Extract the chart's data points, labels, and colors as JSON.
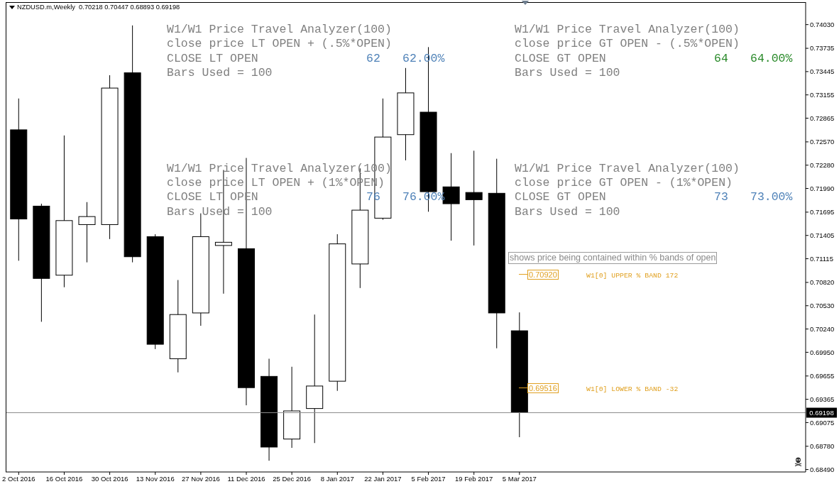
{
  "chart_data": {
    "type": "candlestick",
    "title": "NZDUSD.m,Weekly  0.70218 0.70447 0.68893 0.69198",
    "x": [
      "2016-10-02",
      "2016-10-09",
      "2016-10-16",
      "2016-10-23",
      "2016-10-30",
      "2016-11-06",
      "2016-11-13",
      "2016-11-20",
      "2016-11-27",
      "2016-12-04",
      "2016-12-11",
      "2016-12-18",
      "2016-12-25",
      "2017-01-01",
      "2017-01-08",
      "2017-01-15",
      "2017-01-22",
      "2017-01-29",
      "2017-02-05",
      "2017-02-12",
      "2017-02-19",
      "2017-02-26",
      "2017-03-05"
    ],
    "ohlc": [
      [
        0.7272,
        0.7311,
        0.7109,
        0.7161
      ],
      [
        0.7177,
        0.718,
        0.7033,
        0.7087
      ],
      [
        0.7091,
        0.7265,
        0.7076,
        0.7159
      ],
      [
        0.7154,
        0.7182,
        0.7107,
        0.7164
      ],
      [
        0.7154,
        0.734,
        0.7136,
        0.7324
      ],
      [
        0.7343,
        0.7402,
        0.7107,
        0.7114
      ],
      [
        0.7139,
        0.7142,
        0.6999,
        0.7005
      ],
      [
        0.6987,
        0.7085,
        0.697,
        0.7042
      ],
      [
        0.7044,
        0.7168,
        0.7028,
        0.7139
      ],
      [
        0.7128,
        0.7222,
        0.7068,
        0.7132
      ],
      [
        0.7124,
        0.7237,
        0.6929,
        0.6951
      ],
      [
        0.6965,
        0.6987,
        0.686,
        0.6877
      ],
      [
        0.6887,
        0.6977,
        0.6876,
        0.6922
      ],
      [
        0.6925,
        0.7042,
        0.6882,
        0.6953
      ],
      [
        0.6959,
        0.7142,
        0.6947,
        0.713
      ],
      [
        0.7105,
        0.7224,
        0.7075,
        0.7172
      ],
      [
        0.7162,
        0.7311,
        0.716,
        0.7263
      ],
      [
        0.7266,
        0.7349,
        0.7234,
        0.7318
      ],
      [
        0.7294,
        0.7375,
        0.717,
        0.7195
      ],
      [
        0.7201,
        0.7243,
        0.7134,
        0.718
      ],
      [
        0.7194,
        0.7246,
        0.7128,
        0.7185
      ],
      [
        0.7193,
        0.7236,
        0.7,
        0.7044
      ],
      [
        0.70218,
        0.70447,
        0.68893,
        0.69198
      ]
    ],
    "colors": [
      "#000000",
      "#000000",
      "#ffffff",
      "#ffffff",
      "#ffffff",
      "#000000",
      "#000000",
      "#ffffff",
      "#ffffff",
      "#ffffff",
      "#000000",
      "#000000",
      "#ffffff",
      "#ffffff",
      "#ffffff",
      "#ffffff",
      "#ffffff",
      "#ffffff",
      "#000000",
      "#000000",
      "#000000",
      "#000000",
      "#000000"
    ],
    "xlim": [
      "2016-09-28",
      "2017-06-01"
    ],
    "xticks": [
      {
        "value": "2016-10-02",
        "label": "2 Oct 2016"
      },
      {
        "value": "2016-10-16",
        "label": "16 Oct 2016"
      },
      {
        "value": "2016-10-30",
        "label": "30 Oct 2016"
      },
      {
        "value": "2016-11-13",
        "label": "13 Nov 2016"
      },
      {
        "value": "2016-11-27",
        "label": "27 Nov 2016"
      },
      {
        "value": "2016-12-11",
        "label": "11 Dec 2016"
      },
      {
        "value": "2016-12-25",
        "label": "25 Dec 2016"
      },
      {
        "value": "2017-01-08",
        "label": "8 Jan 2017"
      },
      {
        "value": "2017-01-22",
        "label": "22 Jan 2017"
      },
      {
        "value": "2017-02-05",
        "label": "5 Feb 2017"
      },
      {
        "value": "2017-02-19",
        "label": "19 Feb 2017"
      },
      {
        "value": "2017-03-05",
        "label": "5 Mar 2017"
      }
    ],
    "ylim": [
      0.6846,
      0.7431
    ],
    "yticks": [
      {
        "value": 0.7403,
        "label": "0.74030"
      },
      0.73735,
      0.73445,
      0.73155,
      0.72865,
      {
        "value": 0.7257,
        "label": "0.72570"
      },
      {
        "value": 0.7228,
        "label": "0.72280"
      },
      {
        "value": 0.7199,
        "label": "0.71990"
      },
      0.71695,
      0.71405,
      0.71115,
      {
        "value": 0.7082,
        "label": "0.70820"
      },
      {
        "value": 0.7053,
        "label": "0.70530"
      },
      {
        "value": 0.7024,
        "label": "0.70240"
      },
      {
        "value": 0.6995,
        "label": "0.69950"
      },
      0.69655,
      0.69365,
      0.69075,
      {
        "value": 0.6878,
        "label": "0.68780"
      },
      {
        "value": 0.6849,
        "label": "0.68490"
      }
    ],
    "ref_lines": [
      {
        "axis": "y",
        "value": 0.69198,
        "label": "0.69198",
        "color": "#8c8c8c"
      }
    ],
    "annotations": [
      "W1/W1 Price Travel Analyzer(100)",
      "close price LT OPEN + (.5%*OPEN)",
      "CLOSE LT OPEN",
      "62",
      "62.00%",
      "Bars Used = 100",
      "W1/W1 Price Travel Analyzer(100)",
      "close price GT OPEN - (.5%*OPEN)",
      "CLOSE GT OPEN",
      "64",
      "64.00%",
      "Bars Used = 100",
      "W1/W1 Price Travel Analyzer(100)",
      "close price LT OPEN + (1%*OPEN)",
      "CLOSE LT OPEN",
      "76",
      "76.00%",
      "Bars Used = 100",
      "W1/W1 Price Travel Analyzer(100)",
      "close price GT OPEN - (1%*OPEN)",
      "CLOSE GT OPEN",
      "73",
      "73.00%",
      "Bars Used = 100",
      "shows price being contained within % bands of open",
      "0.70920",
      "W1[0] UPPER % BAND 172",
      "0.69516",
      "W1[0] LOWER % BAND -32"
    ]
  }
}
